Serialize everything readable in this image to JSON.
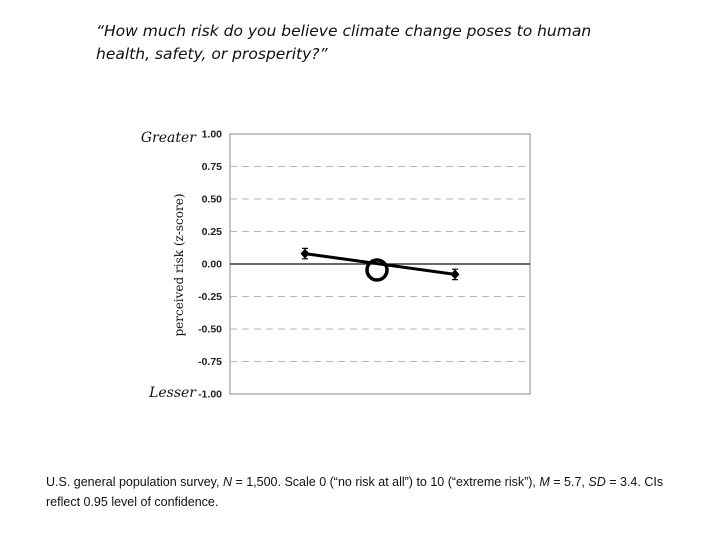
{
  "question": "“How much risk do you believe climate change poses to human health, safety, or prosperity?”",
  "chart_data": {
    "type": "line",
    "ylabel": "perceived risk (z-score)",
    "ylim": [
      -1.0,
      1.0
    ],
    "yticks": [
      "1.00",
      "0.75",
      "0.50",
      "0.25",
      "0.00",
      "-0.25",
      "-0.50",
      "-0.75",
      "-1.00"
    ],
    "y_top_annotation": "Greater",
    "y_bottom_annotation": "Lesser",
    "grid": true,
    "legend": "none",
    "series": [
      {
        "x": [
          1,
          2,
          3
        ],
        "values": [
          0.08,
          0.0,
          -0.08
        ],
        "error": [
          0.04,
          0.0,
          0.04
        ],
        "color": "#000000",
        "highlight_point": 1
      }
    ]
  },
  "footnote": {
    "p1": "U.S. general population survey, ",
    "n_label": "N",
    "p2": " = 1,500. Scale 0 (“no risk at all”) to 10 (“extreme risk”), ",
    "m_label": "M",
    "p3": " = 5.7, ",
    "sd_label": "SD",
    "p4": " = 3.4. CIs reflect 0.95 level of confidence."
  }
}
